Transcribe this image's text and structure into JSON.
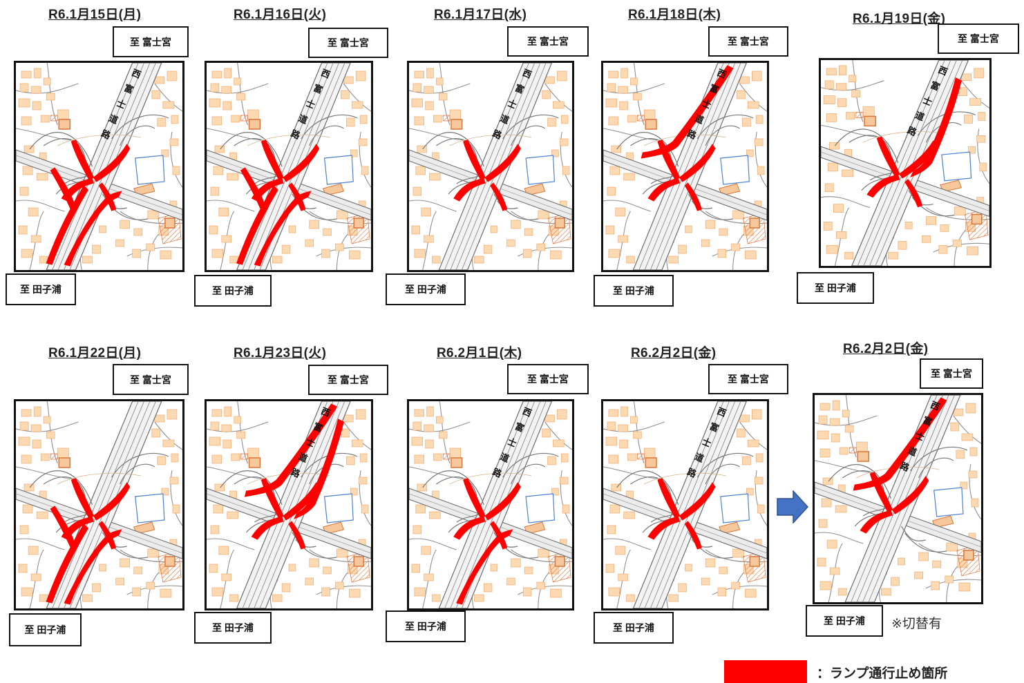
{
  "labels": {
    "north": "至 富士宮",
    "south": "至 田子浦"
  },
  "road_name": "西富士道路",
  "road_chars": [
    "西",
    "富",
    "士",
    "道",
    "路"
  ],
  "colors": {
    "closure": "#ff0000",
    "building": "#fcd9b0",
    "building_edge": "#e8a36a",
    "road": "#bdbdbd",
    "pond": "#4a7fd4",
    "arrow": "#4472c4"
  },
  "panels": [
    {
      "date": "R6.1月15日(月)",
      "closed": [
        "nw",
        "ne",
        "sw",
        "se",
        "sw_long",
        "se_long"
      ]
    },
    {
      "date": "R6.1月16日(火)",
      "closed": [
        "nw",
        "ne",
        "sw",
        "se",
        "sw_long",
        "se_long"
      ]
    },
    {
      "date": "R6.1月17日(水)",
      "closed": [
        "nw",
        "ne",
        "sw",
        "se"
      ]
    },
    {
      "date": "R6.1月18日(木)",
      "closed": [
        "nw",
        "ne",
        "sw",
        "se",
        "nw_long"
      ]
    },
    {
      "date": "R6.1月19日(金)",
      "closed": [
        "nw",
        "ne",
        "sw",
        "se",
        "ne_long"
      ]
    },
    {
      "date": "R6.1月22日(月)",
      "closed": [
        "nw",
        "ne",
        "sw",
        "se",
        "sw_long",
        "se_long"
      ]
    },
    {
      "date": "R6.1月23日(火)",
      "closed": [
        "nw",
        "ne",
        "sw",
        "se",
        "nw_long",
        "ne_long"
      ]
    },
    {
      "date": "R6.2月1日(木)",
      "closed": [
        "nw",
        "ne",
        "sw",
        "se",
        "se_long"
      ]
    },
    {
      "date": "R6.2月2日(金)",
      "closed": [
        "nw",
        "ne",
        "sw",
        "se"
      ]
    },
    {
      "date": "R6.2月2日(金)",
      "closed": [
        "nw",
        "ne",
        "sw",
        "nw_long"
      ]
    }
  ],
  "note": "※切替有",
  "legend": {
    "text": "：ランプ通行止め箇所"
  }
}
